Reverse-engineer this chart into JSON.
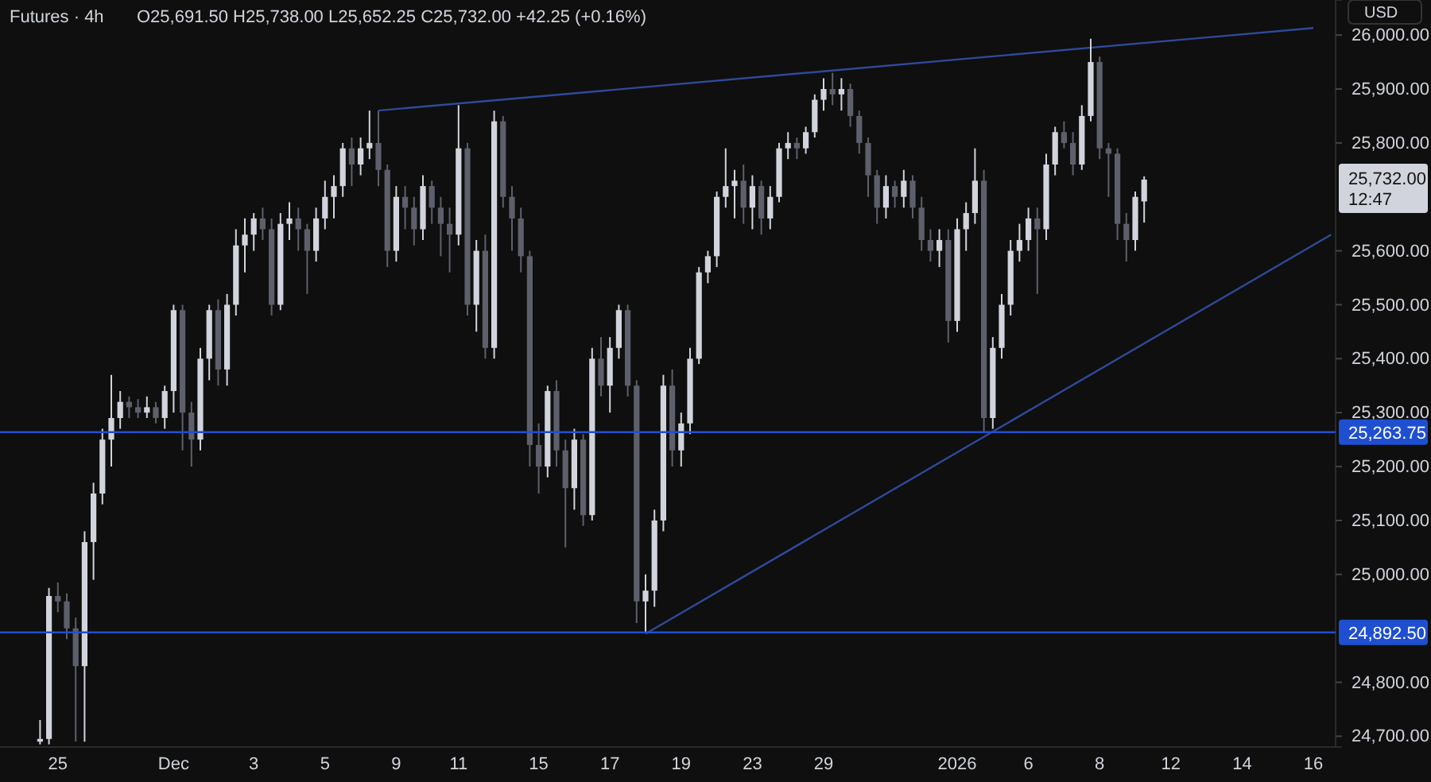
{
  "chart_data": {
    "type": "candlestick",
    "title": "Futures · 4h",
    "subtitle": "O25,691.50 H25,738.00 L25,652.25 C25,732.00 +42.25 (+0.16%)",
    "categories": [
      null,
      null,
      null,
      null,
      null,
      null,
      "25",
      null,
      null,
      null,
      null,
      null,
      null,
      null,
      null,
      null,
      null,
      null,
      null,
      "Dec",
      null,
      null,
      null,
      null,
      null,
      null,
      null,
      null,
      "3",
      null,
      null,
      null,
      null,
      null,
      null,
      null,
      "5",
      null,
      null,
      null,
      null,
      null,
      null,
      null,
      "9",
      null,
      null,
      null,
      null,
      null,
      null,
      "11",
      null,
      null,
      null,
      null,
      null,
      null,
      null,
      null,
      "15",
      null,
      null,
      null,
      null,
      null,
      null,
      null,
      "17",
      null,
      null,
      null,
      null,
      null,
      null,
      null,
      "19",
      null,
      null,
      null,
      null,
      null,
      null,
      null,
      "23",
      null,
      null,
      null,
      null,
      null,
      null,
      null,
      "29",
      null,
      null,
      null,
      null,
      null,
      null,
      null,
      null,
      null,
      null,
      null,
      null,
      null,
      null,
      "2026",
      null,
      null,
      null,
      null,
      null,
      null,
      null,
      "6",
      null,
      null,
      null,
      null,
      null,
      null,
      null,
      "8",
      null,
      null,
      null,
      null,
      null,
      null,
      null,
      "12",
      null,
      null,
      null,
      null,
      null,
      null,
      null,
      "14",
      null,
      null,
      null,
      null,
      null,
      null,
      null,
      "16",
      null,
      null
    ],
    "ylim": [
      24680,
      26065
    ],
    "yticks": [
      {
        "value": 24700,
        "label": "24,700.00"
      },
      {
        "value": 24800,
        "label": "24,800.00"
      },
      {
        "value": 25000,
        "label": "25,000.00"
      },
      {
        "value": 25100,
        "label": "25,100.00"
      },
      {
        "value": 25200,
        "label": "25,200.00"
      },
      {
        "value": 25300,
        "label": "25,300.00"
      },
      {
        "value": 25400,
        "label": "25,400.00"
      },
      {
        "value": 25500,
        "label": "25,500.00"
      },
      {
        "value": 25600,
        "label": "25,600.00"
      },
      {
        "value": 25800,
        "label": "25,800.00"
      },
      {
        "value": 25900,
        "label": "25,900.00"
      },
      {
        "value": 26000,
        "label": "26,000.00"
      }
    ],
    "series": [
      {
        "ohlc": [
          null,
          null,
          null,
          null,
          [
            24690,
            24730,
            24685,
            24695
          ],
          [
            24695,
            24975,
            24685,
            24960
          ],
          [
            24960,
            24985,
            24930,
            24950
          ],
          [
            24950,
            24965,
            24880,
            24900
          ],
          [
            24900,
            24920,
            24690,
            24830
          ],
          [
            24830,
            25080,
            24690,
            25060
          ],
          [
            25060,
            25170,
            24990,
            25150
          ],
          [
            25150,
            25270,
            25130,
            25250
          ],
          [
            25250,
            25370,
            25200,
            25290
          ],
          [
            25290,
            25340,
            25270,
            25320
          ],
          [
            25320,
            25330,
            25290,
            25310
          ],
          [
            25310,
            25325,
            25290,
            25300
          ],
          [
            25300,
            25330,
            25290,
            25310
          ],
          [
            25310,
            25320,
            25280,
            25290
          ],
          [
            25290,
            25350,
            25270,
            25340
          ],
          [
            25340,
            25500,
            25300,
            25490
          ],
          [
            25490,
            25500,
            25230,
            25300
          ],
          [
            25300,
            25320,
            25200,
            25250
          ],
          [
            25250,
            25420,
            25230,
            25400
          ],
          [
            25400,
            25500,
            25360,
            25490
          ],
          [
            25490,
            25510,
            25350,
            25380
          ],
          [
            25380,
            25520,
            25350,
            25500
          ],
          [
            25500,
            25640,
            25480,
            25610
          ],
          [
            25610,
            25660,
            25560,
            25630
          ],
          [
            25630,
            25670,
            25600,
            25660
          ],
          [
            25660,
            25680,
            25620,
            25640
          ],
          [
            25640,
            25660,
            25480,
            25500
          ],
          [
            25500,
            25670,
            25490,
            25650
          ],
          [
            25650,
            25690,
            25620,
            25660
          ],
          [
            25660,
            25680,
            25600,
            25640
          ],
          [
            25640,
            25650,
            25520,
            25600
          ],
          [
            25600,
            25680,
            25580,
            25660
          ],
          [
            25660,
            25730,
            25640,
            25700
          ],
          [
            25700,
            25740,
            25660,
            25720
          ],
          [
            25720,
            25800,
            25700,
            25790
          ],
          [
            25790,
            25810,
            25720,
            25760
          ],
          [
            25760,
            25810,
            25740,
            25790
          ],
          [
            25790,
            25860,
            25770,
            25800
          ],
          [
            25800,
            25860,
            25720,
            25750
          ],
          [
            25750,
            25760,
            25570,
            25600
          ],
          [
            25600,
            25720,
            25580,
            25700
          ],
          [
            25700,
            25720,
            25640,
            25680
          ],
          [
            25680,
            25700,
            25610,
            25640
          ],
          [
            25640,
            25740,
            25620,
            25720
          ],
          [
            25720,
            25730,
            25650,
            25680
          ],
          [
            25680,
            25700,
            25590,
            25650
          ],
          [
            25650,
            25680,
            25560,
            25630
          ],
          [
            25630,
            25870,
            25610,
            25790
          ],
          [
            25790,
            25800,
            25480,
            25500
          ],
          [
            25500,
            25620,
            25450,
            25600
          ],
          [
            25600,
            25630,
            25400,
            25420
          ],
          [
            25420,
            25860,
            25400,
            25840
          ],
          [
            25840,
            25850,
            25680,
            25700
          ],
          [
            25700,
            25720,
            25600,
            25660
          ],
          [
            25660,
            25680,
            25560,
            25590
          ],
          [
            25590,
            25600,
            25200,
            25240
          ],
          [
            25240,
            25280,
            25150,
            25200
          ],
          [
            25200,
            25350,
            25180,
            25340
          ],
          [
            25340,
            25360,
            25200,
            25230
          ],
          [
            25230,
            25250,
            25050,
            25160
          ],
          [
            25160,
            25270,
            25120,
            25250
          ],
          [
            25250,
            25260,
            25090,
            25110
          ],
          [
            25110,
            25420,
            25100,
            25400
          ],
          [
            25400,
            25440,
            25330,
            25350
          ],
          [
            25350,
            25440,
            25300,
            25420
          ],
          [
            25420,
            25500,
            25400,
            25490
          ],
          [
            25490,
            25500,
            25330,
            25350
          ],
          [
            25350,
            25360,
            24910,
            24950
          ],
          [
            24950,
            25000,
            24892.5,
            24970
          ],
          [
            24970,
            25120,
            24940,
            25100
          ],
          [
            25100,
            25370,
            25080,
            25350
          ],
          [
            25350,
            25380,
            25200,
            25230
          ],
          [
            25230,
            25300,
            25200,
            25280
          ],
          [
            25280,
            25420,
            25260,
            25400
          ],
          [
            25400,
            25570,
            25390,
            25560
          ],
          [
            25560,
            25600,
            25540,
            25590
          ],
          [
            25590,
            25710,
            25570,
            25700
          ],
          [
            25700,
            25790,
            25680,
            25720
          ],
          [
            25720,
            25750,
            25660,
            25730
          ],
          [
            25730,
            25760,
            25650,
            25680
          ],
          [
            25680,
            25740,
            25640,
            25720
          ],
          [
            25720,
            25730,
            25630,
            25660
          ],
          [
            25660,
            25720,
            25640,
            25700
          ],
          [
            25700,
            25800,
            25690,
            25790
          ],
          [
            25790,
            25820,
            25770,
            25800
          ],
          [
            25800,
            25810,
            25770,
            25790
          ],
          [
            25790,
            25830,
            25780,
            25820
          ],
          [
            25820,
            25890,
            25810,
            25880
          ],
          [
            25880,
            25920,
            25860,
            25900
          ],
          [
            25900,
            25930,
            25870,
            25890
          ],
          [
            25890,
            25920,
            25860,
            25900
          ],
          [
            25900,
            25910,
            25830,
            25850
          ],
          [
            25850,
            25860,
            25780,
            25800
          ],
          [
            25800,
            25810,
            25700,
            25740
          ],
          [
            25740,
            25750,
            25650,
            25680
          ],
          [
            25680,
            25740,
            25660,
            25720
          ],
          [
            25720,
            25730,
            25680,
            25700
          ],
          [
            25700,
            25750,
            25680,
            25730
          ],
          [
            25730,
            25740,
            25660,
            25680
          ],
          [
            25680,
            25700,
            25600,
            25620
          ],
          [
            25620,
            25640,
            25580,
            25600
          ],
          [
            25600,
            25640,
            25570,
            25620
          ],
          [
            25620,
            25640,
            25430,
            25470
          ],
          [
            25470,
            25660,
            25450,
            25640
          ],
          [
            25640,
            25690,
            25600,
            25670
          ],
          [
            25670,
            25790,
            25650,
            25730
          ],
          [
            25730,
            25750,
            25263.75,
            25290
          ],
          [
            25290,
            25440,
            25270,
            25420
          ],
          [
            25420,
            25520,
            25400,
            25500
          ],
          [
            25500,
            25620,
            25480,
            25600
          ],
          [
            25600,
            25650,
            25580,
            25620
          ],
          [
            25620,
            25680,
            25600,
            25660
          ],
          [
            25660,
            25680,
            25520,
            25640
          ],
          [
            25640,
            25780,
            25620,
            25760
          ],
          [
            25760,
            25830,
            25740,
            25820
          ],
          [
            25820,
            25840,
            25790,
            25800
          ],
          [
            25800,
            25820,
            25740,
            25760
          ],
          [
            25760,
            25870,
            25750,
            25850
          ],
          [
            25850,
            25993,
            25840,
            25950
          ],
          [
            25950,
            25960,
            25770,
            25790
          ],
          [
            25790,
            25800,
            25700,
            25780
          ],
          [
            25780,
            25790,
            25620,
            25650
          ],
          [
            25650,
            25670,
            25580,
            25620
          ],
          [
            25620,
            25710,
            25600,
            25700
          ],
          [
            25691.5,
            25738,
            25652.25,
            25732
          ],
          null,
          null,
          null,
          null,
          null,
          null,
          null,
          null,
          null,
          null,
          null,
          null,
          null,
          null,
          null,
          null,
          null,
          null,
          null,
          null,
          null
        ],
        "colors": [
          null,
          null,
          null,
          null,
          "#d1d4dc",
          "#d1d4dc",
          "#5d606b",
          "#5d606b",
          "#5d606b",
          "#d1d4dc",
          "#d1d4dc",
          "#d1d4dc",
          "#d1d4dc",
          "#d1d4dc",
          "#5d606b",
          "#5d606b",
          "#d1d4dc",
          "#5d606b",
          "#d1d4dc",
          "#d1d4dc",
          "#5d606b",
          "#5d606b",
          "#d1d4dc",
          "#d1d4dc",
          "#5d606b",
          "#d1d4dc",
          "#d1d4dc",
          "#d1d4dc",
          "#d1d4dc",
          "#5d606b",
          "#5d606b",
          "#d1d4dc",
          "#d1d4dc",
          "#5d606b",
          "#5d606b",
          "#d1d4dc",
          "#d1d4dc",
          "#d1d4dc",
          "#d1d4dc",
          "#5d606b",
          "#d1d4dc",
          "#d1d4dc",
          "#5d606b",
          "#5d606b",
          "#d1d4dc",
          "#5d606b",
          "#5d606b",
          "#d1d4dc",
          "#5d606b",
          "#5d606b",
          "#5d606b",
          "#d1d4dc",
          "#5d606b",
          "#d1d4dc",
          "#5d606b",
          "#d1d4dc",
          "#5d606b",
          "#5d606b",
          "#5d606b",
          "#5d606b",
          "#5d606b",
          "#d1d4dc",
          "#5d606b",
          "#5d606b",
          "#d1d4dc",
          "#5d606b",
          "#d1d4dc",
          "#5d606b",
          "#d1d4dc",
          "#d1d4dc",
          "#5d606b",
          "#5d606b",
          "#d1d4dc",
          "#d1d4dc",
          "#d1d4dc",
          "#5d606b",
          "#d1d4dc",
          "#d1d4dc",
          "#d1d4dc",
          "#d1d4dc",
          "#d1d4dc",
          "#d1d4dc",
          "#d1d4dc",
          "#5d606b",
          "#d1d4dc",
          "#5d606b",
          "#d1d4dc",
          "#d1d4dc",
          "#d1d4dc",
          "#5d606b",
          "#d1d4dc",
          "#d1d4dc",
          "#d1d4dc",
          "#5d606b",
          "#d1d4dc",
          "#5d606b",
          "#5d606b",
          "#5d606b",
          "#5d606b",
          "#d1d4dc",
          "#5d606b",
          "#d1d4dc",
          "#5d606b",
          "#5d606b",
          "#5d606b",
          "#d1d4dc",
          "#5d606b",
          "#d1d4dc",
          "#d1d4dc",
          "#d1d4dc",
          "#5d606b",
          "#d1d4dc",
          "#d1d4dc",
          "#d1d4dc",
          "#d1d4dc",
          "#d1d4dc",
          "#5d606b",
          "#d1d4dc",
          "#d1d4dc",
          "#5d606b",
          "#5d606b",
          "#d1d4dc",
          "#d1d4dc",
          "#5d606b",
          "#5d606b",
          "#5d606b",
          "#5d606b",
          "#d1d4dc",
          "#d1d4dc",
          null,
          null,
          null,
          null,
          null,
          null,
          null,
          null,
          null,
          null,
          null,
          null,
          null,
          null,
          null,
          null,
          null,
          null,
          null,
          null,
          null
        ]
      },
      {
        "type": "line",
        "color": "#2e4a9a",
        "values": [
          null,
          null,
          null,
          null,
          null,
          null,
          null,
          null,
          null,
          null,
          null,
          null,
          null,
          null,
          null,
          null,
          null,
          null,
          null,
          null,
          null,
          null,
          null,
          null,
          null,
          null,
          null,
          null,
          null,
          null,
          null,
          null,
          null,
          null,
          null,
          null,
          null,
          null,
          null,
          null,
          null,
          null,
          25860,
          null,
          null,
          null,
          null,
          null,
          null,
          null,
          null,
          null,
          null,
          null,
          null,
          null,
          null,
          null,
          null,
          null,
          null,
          null,
          null,
          null,
          null,
          null,
          null,
          null,
          null,
          null,
          null,
          null,
          null,
          null,
          null,
          null,
          null,
          null,
          null,
          null,
          null,
          null,
          null,
          null,
          null,
          null,
          null,
          null,
          null,
          null,
          null,
          null,
          null,
          null,
          null,
          null,
          null,
          null,
          null,
          null,
          null,
          null,
          null,
          null,
          null,
          null,
          null,
          null,
          null,
          null,
          null,
          null,
          null,
          null,
          null,
          null,
          null,
          null,
          null,
          null,
          null,
          null,
          null,
          null,
          null,
          null,
          null,
          null,
          null,
          null,
          null,
          null,
          null,
          null,
          null,
          null,
          null,
          null,
          null,
          null,
          null,
          null,
          null,
          null,
          null,
          null,
          null,
          26013,
          null,
          null
        ]
      },
      {
        "type": "line",
        "color": "#2e4a9a",
        "values": [
          null,
          null,
          null,
          null,
          null,
          null,
          null,
          null,
          null,
          null,
          null,
          null,
          null,
          null,
          null,
          null,
          null,
          null,
          null,
          null,
          null,
          null,
          null,
          null,
          null,
          null,
          null,
          null,
          null,
          null,
          null,
          null,
          null,
          null,
          null,
          null,
          null,
          null,
          null,
          null,
          null,
          null,
          null,
          null,
          null,
          null,
          null,
          null,
          null,
          null,
          null,
          null,
          null,
          null,
          null,
          null,
          null,
          null,
          null,
          null,
          null,
          null,
          null,
          null,
          null,
          null,
          null,
          null,
          null,
          null,
          null,
          null,
          24890,
          null,
          null,
          null,
          null,
          null,
          null,
          null,
          null,
          null,
          null,
          null,
          null,
          null,
          null,
          null,
          null,
          null,
          null,
          null,
          null,
          null,
          null,
          null,
          null,
          null,
          null,
          null,
          null,
          null,
          null,
          null,
          null,
          null,
          null,
          null,
          null,
          null,
          null,
          null,
          null,
          null,
          null,
          null,
          null,
          null,
          null,
          null,
          null,
          null,
          null,
          null,
          null,
          null,
          null,
          null,
          null,
          null,
          null,
          null,
          null,
          null,
          null,
          null,
          null,
          null,
          null,
          null,
          null,
          null,
          null,
          null,
          null,
          null,
          null,
          null,
          null,
          25630
        ]
      }
    ],
    "ref_lines": [
      {
        "axis": "y",
        "value": 25263.75,
        "label": "25,263.75",
        "color": "#1f4fd1"
      },
      {
        "axis": "y",
        "value": 24892.5,
        "label": "24,892.50",
        "color": "#1f4fd1"
      }
    ],
    "annotations": [
      "25,732.00",
      "12:47",
      "USD"
    ]
  }
}
